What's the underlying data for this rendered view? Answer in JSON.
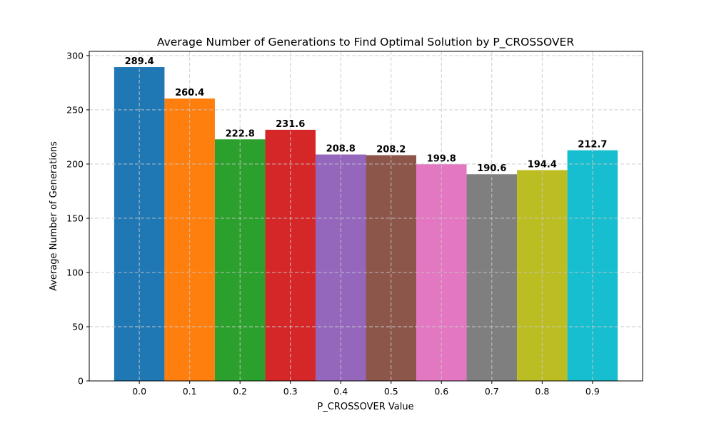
{
  "chart_data": {
    "type": "bar",
    "title": "Average Number of Generations to Find Optimal Solution by P_CROSSOVER",
    "xlabel": "P_CROSSOVER Value",
    "ylabel": "Average Number of Generations",
    "categories": [
      "0.0",
      "0.1",
      "0.2",
      "0.3",
      "0.4",
      "0.5",
      "0.6",
      "0.7",
      "0.8",
      "0.9"
    ],
    "values": [
      289.4,
      260.4,
      222.8,
      231.6,
      208.8,
      208.2,
      199.8,
      190.6,
      194.4,
      212.7
    ],
    "data_labels": [
      "289.4",
      "260.4",
      "222.8",
      "231.6",
      "208.8",
      "208.2",
      "199.8",
      "190.6",
      "194.4",
      "212.7"
    ],
    "colors": [
      "#1f77b4",
      "#ff7f0e",
      "#2ca02c",
      "#d62728",
      "#9467bd",
      "#8c564b",
      "#e377c2",
      "#7f7f7f",
      "#bcbd22",
      "#17becf"
    ],
    "yticks": [
      0,
      50,
      100,
      150,
      200,
      250,
      300
    ],
    "ytick_labels": [
      "0",
      "50",
      "100",
      "150",
      "200",
      "250",
      "300"
    ],
    "ylim": [
      0,
      303.9
    ],
    "grid": true
  }
}
